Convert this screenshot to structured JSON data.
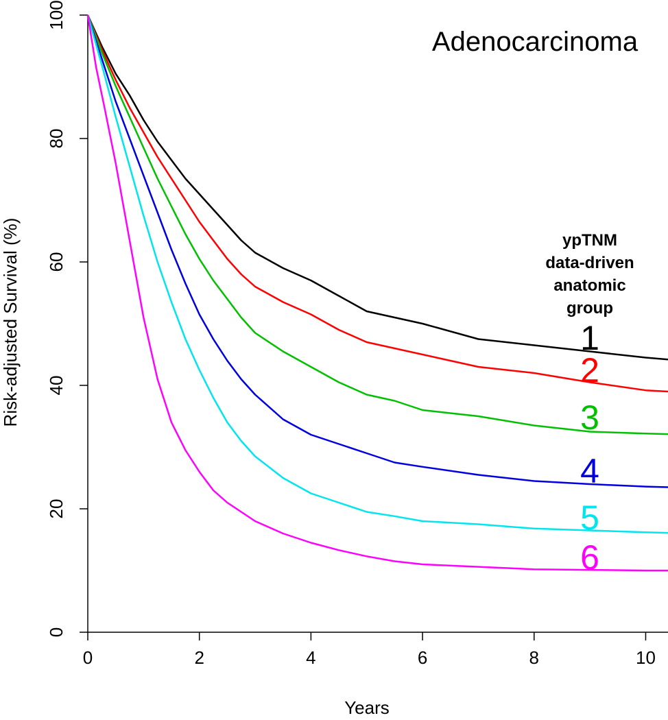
{
  "chart_data": {
    "type": "line",
    "title": "Adenocarcinoma",
    "xlabel": "Years",
    "ylabel": "Risk-adjusted Survival (%)",
    "xlim": [
      0,
      10.4
    ],
    "ylim": [
      0,
      100
    ],
    "xticks": [
      0,
      2,
      4,
      6,
      8,
      10
    ],
    "yticks": [
      0,
      20,
      40,
      60,
      80,
      100
    ],
    "legend_title": [
      "ypTNM",
      "data-driven",
      "anatomic",
      "group"
    ],
    "series": [
      {
        "name": "1",
        "color": "#000000",
        "x": [
          0,
          0.25,
          0.5,
          0.75,
          1,
          1.25,
          1.5,
          1.75,
          2,
          2.25,
          2.5,
          2.75,
          3,
          3.5,
          4,
          4.5,
          5,
          5.5,
          6,
          7,
          8,
          9,
          10,
          10.4
        ],
        "y": [
          100,
          95,
          90.5,
          87,
          83,
          79.5,
          76.5,
          73.5,
          71,
          68.5,
          66,
          63.5,
          61.5,
          59,
          57,
          54.5,
          52,
          51,
          50,
          47.5,
          46.5,
          45.5,
          44.5,
          44.2
        ]
      },
      {
        "name": "2",
        "color": "#ff0000",
        "x": [
          0,
          0.25,
          0.5,
          0.75,
          1,
          1.25,
          1.5,
          1.75,
          2,
          2.25,
          2.5,
          2.75,
          3,
          3.5,
          4,
          4.5,
          5,
          5.5,
          6,
          7,
          8,
          9,
          10,
          10.4
        ],
        "y": [
          100,
          94.5,
          89.5,
          85,
          81,
          77,
          73.5,
          70,
          66.5,
          63.5,
          60.5,
          58,
          56,
          53.5,
          51.5,
          49,
          47,
          46,
          45,
          43,
          42,
          40.5,
          39.2,
          39
        ]
      },
      {
        "name": "3",
        "color": "#00c000",
        "x": [
          0,
          0.25,
          0.5,
          0.75,
          1,
          1.25,
          1.5,
          1.75,
          2,
          2.25,
          2.5,
          2.75,
          3,
          3.5,
          4,
          4.5,
          5,
          5.5,
          6,
          7,
          8,
          9,
          10,
          10.4
        ],
        "y": [
          100,
          94,
          88.5,
          83.5,
          78.5,
          73.5,
          69,
          64.5,
          60.5,
          57,
          54,
          51,
          48.5,
          45.5,
          43,
          40.5,
          38.5,
          37.5,
          36,
          35,
          33.5,
          32.5,
          32.2,
          32.1
        ]
      },
      {
        "name": "4",
        "color": "#0000e0",
        "x": [
          0,
          0.25,
          0.5,
          0.75,
          1,
          1.25,
          1.5,
          1.75,
          2,
          2.25,
          2.5,
          2.75,
          3,
          3.5,
          4,
          4.5,
          5,
          5.5,
          6,
          7,
          8,
          9,
          10,
          10.4
        ],
        "y": [
          100,
          93,
          86,
          80,
          74,
          68,
          62,
          56.5,
          51.5,
          47.5,
          44,
          41,
          38.5,
          34.5,
          32,
          30.5,
          29,
          27.5,
          26.8,
          25.5,
          24.5,
          24,
          23.6,
          23.5
        ]
      },
      {
        "name": "5",
        "color": "#00e5ee",
        "x": [
          0,
          0.25,
          0.5,
          0.75,
          1,
          1.25,
          1.5,
          1.75,
          2,
          2.25,
          2.5,
          2.75,
          3,
          3.5,
          4,
          4.5,
          5,
          5.5,
          6,
          7,
          8,
          9,
          10,
          10.4
        ],
        "y": [
          100,
          92,
          83.5,
          75.5,
          67.5,
          60,
          53.5,
          47.5,
          42.5,
          38,
          34,
          31,
          28.5,
          25,
          22.5,
          21,
          19.5,
          18.8,
          18,
          17.5,
          16.8,
          16.5,
          16.2,
          16.1
        ]
      },
      {
        "name": "6",
        "color": "#ff00ff",
        "x": [
          0,
          0.15,
          0.3,
          0.5,
          0.75,
          1,
          1.25,
          1.5,
          1.75,
          2,
          2.25,
          2.5,
          2.75,
          3,
          3.5,
          4,
          4.5,
          5,
          5.5,
          6,
          7,
          8,
          9,
          10,
          10.4
        ],
        "y": [
          100,
          91.5,
          85,
          76,
          63.5,
          51,
          41,
          34,
          29.5,
          26,
          23,
          21,
          19.5,
          18,
          16,
          14.5,
          13.3,
          12.3,
          11.5,
          11,
          10.6,
          10.2,
          10.1,
          10,
          10
        ]
      }
    ]
  }
}
